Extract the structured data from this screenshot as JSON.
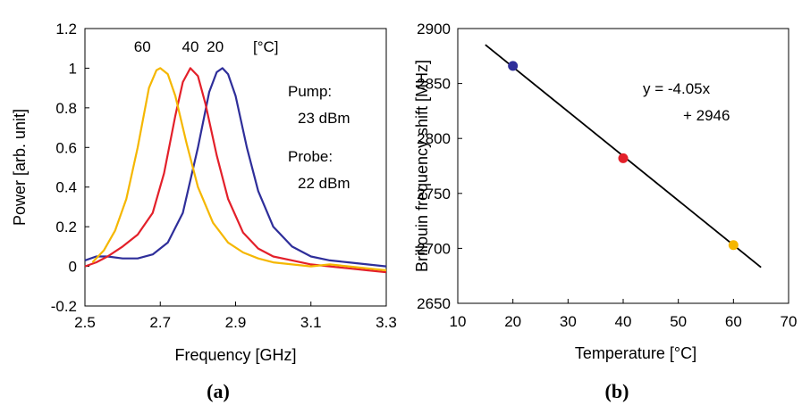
{
  "colors": {
    "c20": "#2e2e9a",
    "c40": "#e3202a",
    "c60": "#f5b700",
    "fit": "#000000"
  },
  "chart_data": [
    {
      "type": "line",
      "panel_label": "(a)",
      "xlabel": "Frequency [GHz]",
      "ylabel": "Power [arb. unit]",
      "xlim": [
        2.5,
        3.3
      ],
      "ylim": [
        -0.2,
        1.2
      ],
      "xticks": [
        "2.5",
        "2.7",
        "2.9",
        "3.1",
        "3.3"
      ],
      "yticks": [
        "-0.2",
        "0",
        "0.2",
        "0.4",
        "0.6",
        "0.8",
        "1",
        "1.2"
      ],
      "unit_label": "[°C]",
      "annotations": {
        "pump": "Pump:",
        "pump_val": "23 dBm",
        "probe": "Probe:",
        "probe_val": "22 dBm"
      },
      "series": [
        {
          "name": "20",
          "color_key": "c20",
          "center": 2.865,
          "halfwidth": 0.055,
          "baseline_x": [
            2.5,
            2.53,
            2.56,
            2.6,
            2.64,
            2.68,
            2.72,
            2.76,
            2.8,
            2.83,
            2.85,
            2.865,
            2.88,
            2.9,
            2.93,
            2.96,
            3.0,
            3.05,
            3.1,
            3.15,
            3.2,
            3.25,
            3.3
          ],
          "y": [
            0.03,
            0.05,
            0.05,
            0.04,
            0.04,
            0.06,
            0.12,
            0.27,
            0.6,
            0.88,
            0.98,
            1.0,
            0.97,
            0.86,
            0.6,
            0.38,
            0.2,
            0.1,
            0.05,
            0.03,
            0.02,
            0.01,
            0.0
          ]
        },
        {
          "name": "40",
          "color_key": "c40",
          "baseline_x": [
            2.5,
            2.53,
            2.56,
            2.6,
            2.64,
            2.68,
            2.71,
            2.74,
            2.76,
            2.78,
            2.8,
            2.82,
            2.85,
            2.88,
            2.92,
            2.96,
            3.0,
            3.05,
            3.1,
            3.15,
            3.2,
            3.25,
            3.3
          ],
          "y": [
            0.0,
            0.02,
            0.05,
            0.1,
            0.16,
            0.27,
            0.47,
            0.76,
            0.93,
            1.0,
            0.96,
            0.82,
            0.56,
            0.34,
            0.17,
            0.09,
            0.05,
            0.03,
            0.01,
            0.0,
            -0.01,
            -0.02,
            -0.03
          ]
        },
        {
          "name": "60",
          "color_key": "c60",
          "baseline_x": [
            2.52,
            2.55,
            2.58,
            2.61,
            2.64,
            2.67,
            2.69,
            2.7,
            2.72,
            2.74,
            2.77,
            2.8,
            2.84,
            2.88,
            2.92,
            2.96,
            3.0,
            3.05,
            3.1,
            3.15,
            3.2,
            3.25,
            3.3
          ],
          "y": [
            0.02,
            0.08,
            0.18,
            0.34,
            0.6,
            0.9,
            0.99,
            1.0,
            0.97,
            0.86,
            0.62,
            0.4,
            0.22,
            0.12,
            0.07,
            0.04,
            0.02,
            0.01,
            0.0,
            0.01,
            0.0,
            -0.01,
            -0.02
          ]
        }
      ]
    },
    {
      "type": "scatter",
      "panel_label": "(b)",
      "xlabel": "Temperature [°C]",
      "ylabel": "Brillouin frequency shift [MHz]",
      "xlim": [
        10,
        70
      ],
      "ylim": [
        2650,
        2900
      ],
      "xticks": [
        "10",
        "20",
        "30",
        "40",
        "50",
        "60",
        "70"
      ],
      "yticks": [
        "2650",
        "2700",
        "2750",
        "2800",
        "2850",
        "2900"
      ],
      "points": [
        {
          "x": 20,
          "y": 2866,
          "color_key": "c20"
        },
        {
          "x": 40,
          "y": 2782,
          "color_key": "c40"
        },
        {
          "x": 60,
          "y": 2703,
          "color_key": "c60"
        }
      ],
      "fit": {
        "slope": -4.05,
        "intercept": 2946,
        "x_range": [
          15,
          65
        ],
        "label_line1": "y = -4.05x",
        "label_line2": "+ 2946"
      }
    }
  ]
}
